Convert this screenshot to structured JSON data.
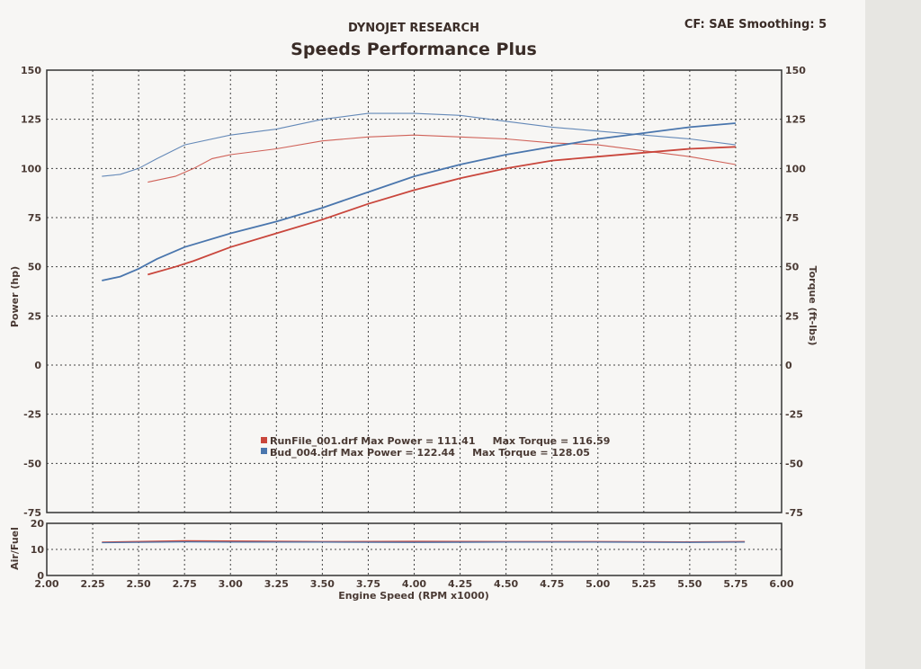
{
  "header": {
    "organization": "DYNOJET RESEARCH",
    "title": "Speeds Performance Plus",
    "settings": "CF: SAE  Smoothing: 5"
  },
  "colors": {
    "run1": "#c9463c",
    "run2": "#4a76ad",
    "grid": "#444444",
    "text": "#4a3a34"
  },
  "chart_data": {
    "type": "line",
    "xlabel": "Engine Speed (RPM x1000)",
    "ylabel_left": "Power (hp)",
    "ylabel_right": "Torque (ft-lbs)",
    "ylabel_af": "Air/Fuel",
    "xlim": [
      2.0,
      6.0
    ],
    "ylim": [
      -75,
      150
    ],
    "af_ylim": [
      0,
      20
    ],
    "grid": true,
    "x_ticks": [
      "2.00",
      "2.25",
      "2.50",
      "2.75",
      "3.00",
      "3.25",
      "3.50",
      "3.75",
      "4.00",
      "4.25",
      "4.50",
      "4.75",
      "5.00",
      "5.25",
      "5.50",
      "5.75",
      "6.00"
    ],
    "y_ticks": [
      "150",
      "125",
      "100",
      "75",
      "50",
      "25",
      "0",
      "-25",
      "-50",
      "-75"
    ],
    "af_ticks": [
      "20",
      "10",
      "0"
    ],
    "legend": [
      "RunFile_001.drf Max Power = 111.41     Max Torque = 116.59",
      "Bud_004.drf Max Power = 122.44     Max Torque = 128.05"
    ],
    "series": [
      {
        "file": "RunFile_001.drf",
        "kind": "power",
        "x": [
          2.55,
          2.7,
          2.8,
          3.0,
          3.25,
          3.5,
          3.75,
          4.0,
          4.25,
          4.5,
          4.75,
          5.0,
          5.25,
          5.5,
          5.75
        ],
        "y": [
          46,
          50,
          53,
          60,
          67,
          74,
          82,
          89,
          95,
          100,
          104,
          106,
          108,
          110,
          111
        ]
      },
      {
        "file": "RunFile_001.drf",
        "kind": "torque",
        "x": [
          2.55,
          2.7,
          2.8,
          2.9,
          3.0,
          3.25,
          3.5,
          3.75,
          4.0,
          4.25,
          4.5,
          4.75,
          5.0,
          5.25,
          5.5,
          5.75
        ],
        "y": [
          93,
          96,
          100,
          105,
          107,
          110,
          114,
          116,
          117,
          116,
          115,
          113,
          112,
          109,
          106,
          102
        ]
      },
      {
        "file": "Bud_004.drf",
        "kind": "power",
        "x": [
          2.3,
          2.4,
          2.5,
          2.6,
          2.75,
          3.0,
          3.25,
          3.5,
          3.75,
          4.0,
          4.25,
          4.5,
          4.75,
          5.0,
          5.25,
          5.5,
          5.75
        ],
        "y": [
          43,
          45,
          49,
          54,
          60,
          67,
          73,
          80,
          88,
          96,
          102,
          107,
          111,
          115,
          118,
          121,
          123
        ]
      },
      {
        "file": "Bud_004.drf",
        "kind": "torque",
        "x": [
          2.3,
          2.4,
          2.5,
          2.6,
          2.75,
          3.0,
          3.25,
          3.5,
          3.75,
          4.0,
          4.25,
          4.5,
          4.75,
          5.0,
          5.25,
          5.5,
          5.75
        ],
        "y": [
          96,
          97,
          100,
          105,
          112,
          117,
          120,
          125,
          128,
          128,
          127,
          124,
          121,
          119,
          117,
          115,
          112
        ]
      }
    ],
    "air_fuel": [
      {
        "file": "RunFile_001.drf",
        "x": [
          2.3,
          2.75,
          3.0,
          3.5,
          4.0,
          4.5,
          5.0,
          5.5,
          5.8
        ],
        "y": [
          12.8,
          13.3,
          13.2,
          13.0,
          13.1,
          13.0,
          13.0,
          12.9,
          13.0
        ]
      },
      {
        "file": "Bud_004.drf",
        "x": [
          2.3,
          2.75,
          3.0,
          3.5,
          4.0,
          4.5,
          5.0,
          5.5,
          5.8
        ],
        "y": [
          12.6,
          12.9,
          12.8,
          12.8,
          12.7,
          12.8,
          12.8,
          12.7,
          12.8
        ]
      }
    ]
  }
}
